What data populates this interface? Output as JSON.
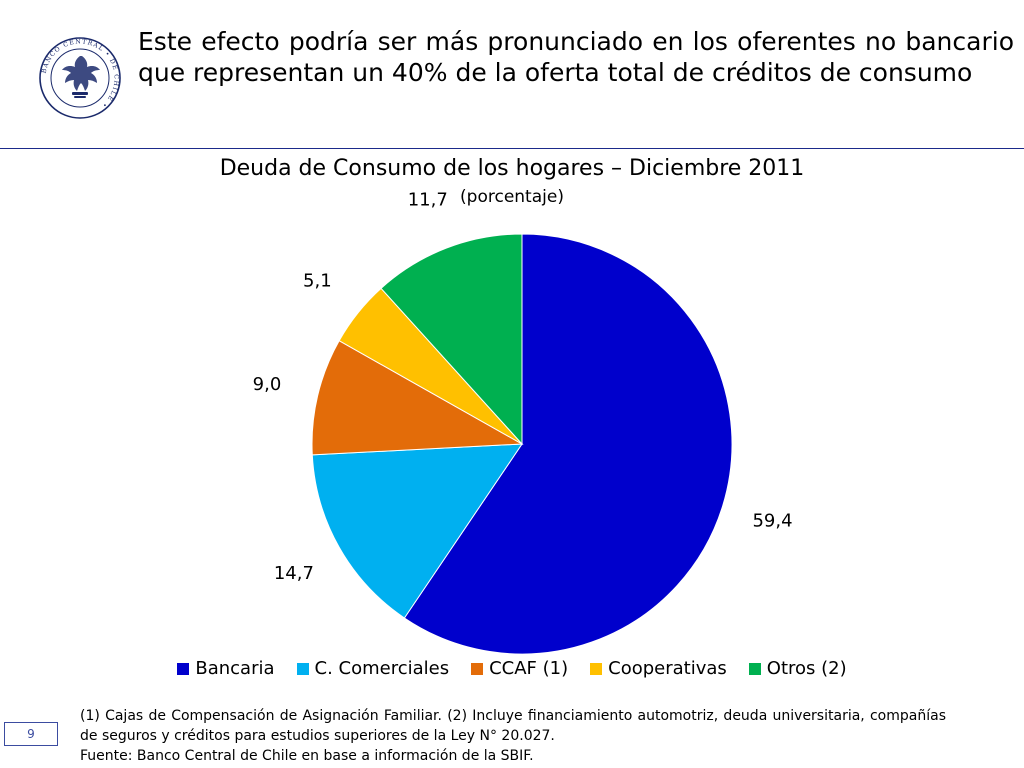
{
  "header": {
    "title": "Este efecto podría ser más pronunciado en los oferentes no bancario que representan un 40% de la oferta total de créditos de consumo"
  },
  "logo": {
    "name": "banco-central-de-chile-seal",
    "text": "BANCO CENTRAL DE CHILE",
    "color": "#1b2a6b"
  },
  "chart_data": {
    "type": "pie",
    "title": "Deuda de Consumo de los hogares – Diciembre 2011",
    "subtitle": "(porcentaje)",
    "categories": [
      "Bancaria",
      "C. Comerciales",
      "CCAF (1)",
      "Cooperativas",
      "Otros (2)"
    ],
    "values": [
      59.4,
      14.7,
      9.0,
      5.1,
      11.7
    ],
    "value_labels": [
      "59,4",
      "14,7",
      "9,0",
      "5,1",
      "11,7"
    ],
    "colors": [
      "#0000cc",
      "#00b0f0",
      "#e36c09",
      "#ffc000",
      "#00b050"
    ],
    "start_angle": "12 o'clock",
    "direction": "clockwise",
    "legend_position": "bottom"
  },
  "footer": {
    "page_number": "9",
    "note_1": "(1) Cajas de Compensación de Asignación Familiar. (2) Incluye financiamiento automotriz, deuda universitaria, compañías de seguros y créditos para estudios superiores de la Ley N° 20.027.",
    "source": "Fuente: Banco Central de Chile en base a información de la SBIF."
  }
}
